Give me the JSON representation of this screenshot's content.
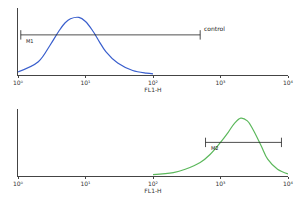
{
  "chart_data": [
    {
      "type": "line",
      "x_label": "FL1-H",
      "log": "x",
      "x": [
        1,
        2,
        3,
        4,
        5,
        6,
        8,
        10,
        13,
        16,
        20,
        30,
        50,
        80,
        100
      ],
      "values": [
        5,
        20,
        45,
        65,
        78,
        84,
        86,
        80,
        65,
        50,
        35,
        18,
        7,
        3,
        2
      ],
      "color": "#3a5fcd",
      "xlim": [
        1,
        10000
      ],
      "xticks": [
        {
          "value": 1,
          "label": "10⁰"
        },
        {
          "value": 10,
          "label": "10¹"
        },
        {
          "value": 100,
          "label": "10²"
        },
        {
          "value": 1000,
          "label": "10³"
        },
        {
          "value": 10000,
          "label": "10⁴"
        }
      ],
      "ylim": [
        0,
        100
      ],
      "tick_labels": "x",
      "gates": [
        {
          "label": "M1",
          "x": [
            1.1,
            500
          ],
          "y": 60
        }
      ],
      "annotations": [
        "control"
      ]
    },
    {
      "type": "line",
      "x_label": "FL1-H",
      "log": "x",
      "x": [
        100,
        200,
        300,
        500,
        700,
        1000,
        1300,
        1600,
        2000,
        2500,
        3000,
        4000,
        5000,
        7000,
        10000
      ],
      "values": [
        2,
        5,
        10,
        20,
        32,
        50,
        65,
        78,
        86,
        82,
        70,
        45,
        25,
        10,
        3
      ],
      "color": "#5cb85c",
      "xlim": [
        1,
        10000
      ],
      "xticks": [
        {
          "value": 1,
          "label": "10⁰"
        },
        {
          "value": 10,
          "label": "10¹"
        },
        {
          "value": 100,
          "label": "10²"
        },
        {
          "value": 1000,
          "label": "10³"
        },
        {
          "value": 10000,
          "label": "10⁴"
        }
      ],
      "ylim": [
        0,
        100
      ],
      "tick_labels": "x",
      "gates": [
        {
          "label": "M2",
          "x": [
            600,
            8000
          ],
          "y": 50
        }
      ]
    }
  ]
}
